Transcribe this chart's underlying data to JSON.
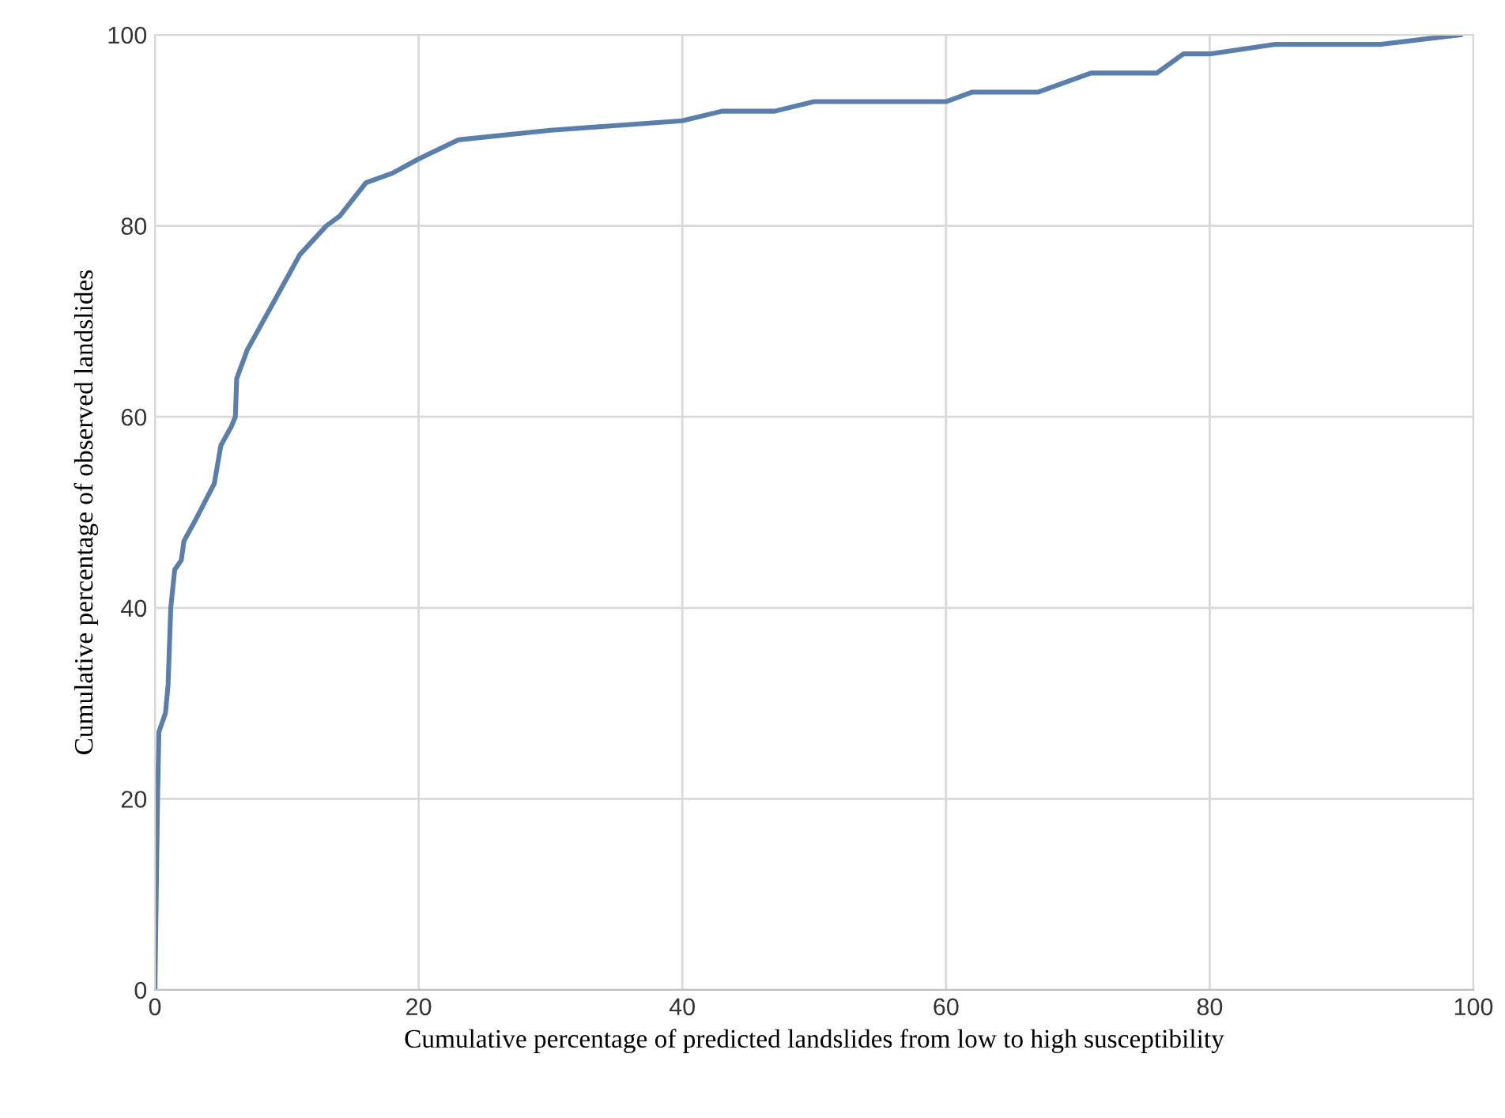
{
  "chart_data": {
    "type": "line",
    "xlabel": "Cumulative percentage of predicted landslides from low to high susceptibility",
    "ylabel": "Cumulative percentage of observed landslides",
    "x": [
      0,
      0.1,
      0.2,
      0.3,
      0.8,
      1.0,
      1.2,
      1.5,
      2.0,
      2.2,
      3,
      4.5,
      5,
      5.8,
      6.1,
      6.2,
      7,
      9,
      11,
      13,
      14,
      16,
      18,
      20,
      23,
      30,
      35,
      40,
      43,
      47,
      50,
      55,
      60,
      62,
      67,
      71,
      76,
      78,
      80,
      85,
      93,
      96,
      99
    ],
    "series": [
      {
        "color": "#5b7fab",
        "values": [
          0,
          10,
          20,
          27,
          29,
          32,
          40,
          44,
          45,
          47,
          49,
          53,
          57,
          59,
          60,
          64,
          67,
          72,
          77,
          80,
          81,
          84.5,
          85.5,
          87,
          89,
          90,
          90.5,
          91,
          92,
          92,
          93,
          93,
          93,
          94,
          94,
          96,
          96,
          98,
          98,
          99,
          99,
          99.5,
          100
        ]
      }
    ],
    "xlim": [
      0,
      100
    ],
    "ylim": [
      0,
      100
    ],
    "xticks": [
      0,
      20,
      40,
      60,
      80,
      100
    ],
    "yticks": [
      0,
      20,
      40,
      60,
      80,
      100
    ],
    "grid": true,
    "legend": false,
    "marker": "none",
    "line_style": "solid"
  }
}
